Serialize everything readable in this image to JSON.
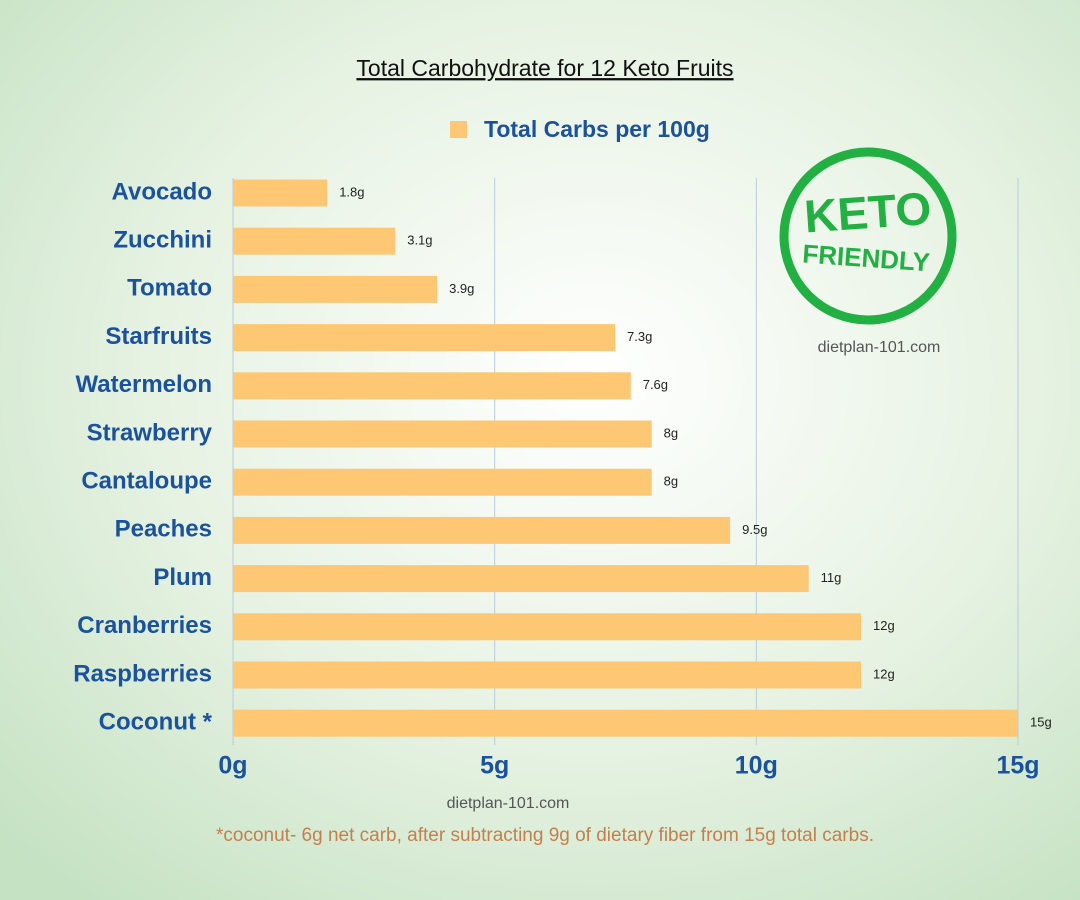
{
  "chart_data": {
    "type": "bar",
    "orientation": "horizontal",
    "title": "Total Carbohydrate for 12 Keto Fruits",
    "categories": [
      "Avocado",
      "Zucchini",
      "Tomato",
      "Starfruits",
      "Watermelon",
      "Strawberry",
      "Cantaloupe",
      "Peaches",
      "Plum",
      "Cranberries",
      "Raspberries",
      "Coconut *"
    ],
    "series": [
      {
        "name": "Total Carbs per 100g",
        "color": "#fdc773",
        "values": [
          1.8,
          3.1,
          3.9,
          7.3,
          7.6,
          8,
          8,
          9.5,
          11,
          12,
          12,
          15
        ],
        "value_labels": [
          "1.8g",
          "3.1g",
          "3.9g",
          "7.3g",
          "7.6g",
          "8g",
          "8g",
          "9.5g",
          "11g",
          "12g",
          "12g",
          "15g"
        ]
      }
    ],
    "xlim": [
      0,
      15
    ],
    "xticks": [
      {
        "value": 0,
        "label": "0g"
      },
      {
        "value": 5,
        "label": "5g"
      },
      {
        "value": 10,
        "label": "10g"
      },
      {
        "value": 15,
        "label": "15g"
      }
    ],
    "grid": true,
    "legend": "top",
    "annotations": [
      "KETO",
      "FRIENDLY",
      "dietplan-101.com",
      "dietplan-101.com",
      "*coconut- 6g net carb, after subtracting 9g of dietary fiber from 15g total carbs."
    ]
  }
}
